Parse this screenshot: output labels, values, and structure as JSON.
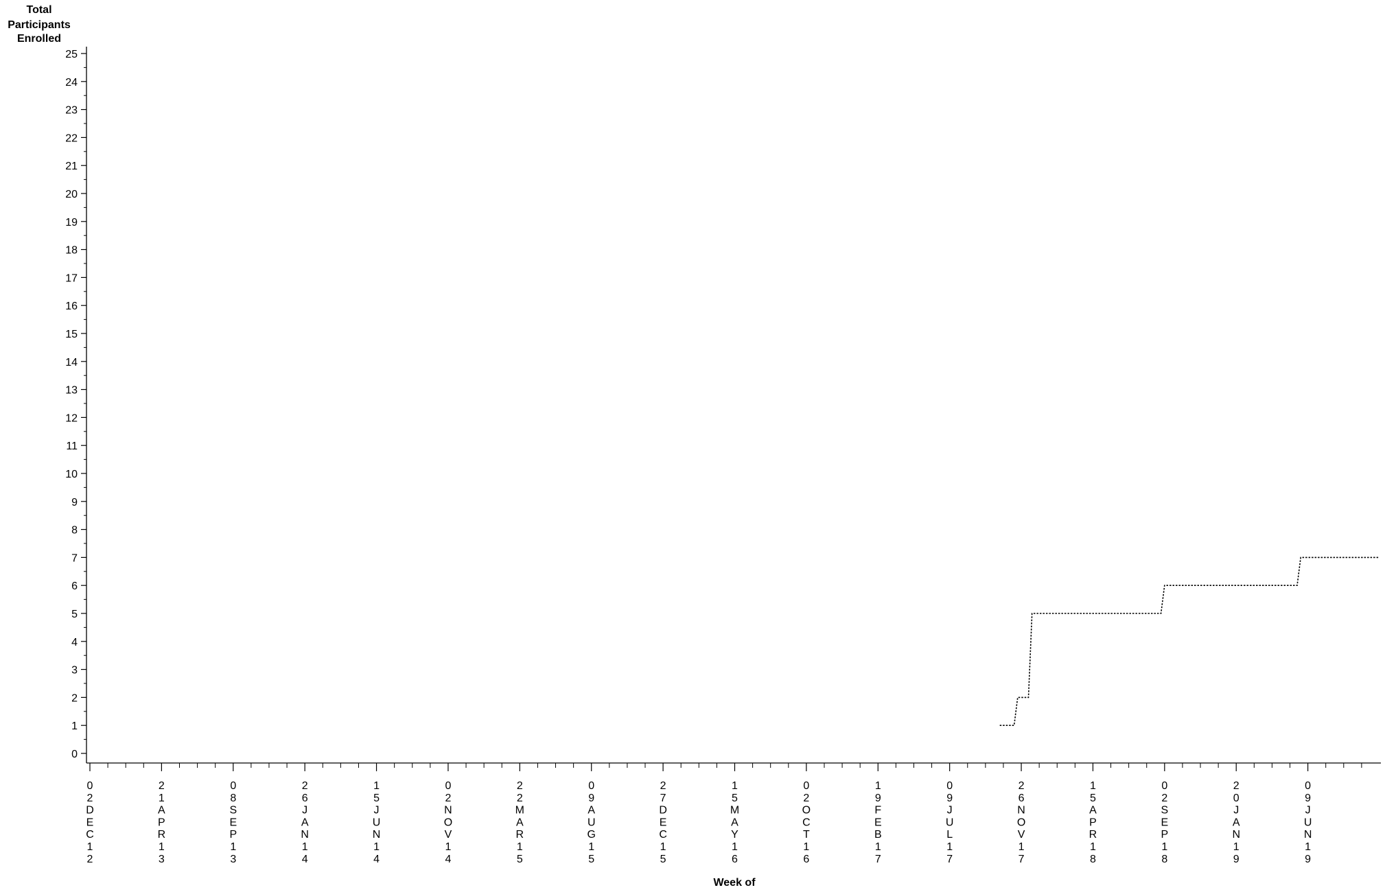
{
  "chart_data": {
    "type": "line",
    "ylabel_lines": [
      "Total",
      "Participants",
      "Enrolled"
    ],
    "xlabel": "Week of",
    "ylim": [
      0,
      25
    ],
    "yticks": [
      0,
      1,
      2,
      3,
      4,
      5,
      6,
      7,
      8,
      9,
      10,
      11,
      12,
      13,
      14,
      15,
      16,
      17,
      18,
      19,
      20,
      21,
      22,
      23,
      24,
      25
    ],
    "xlim": [
      "2012-12-02",
      "2019-10-27"
    ],
    "xticks": [
      {
        "date": "2012-12-02",
        "label": "02DEC12"
      },
      {
        "date": "2013-04-21",
        "label": "21APR13"
      },
      {
        "date": "2013-09-08",
        "label": "08SEP13"
      },
      {
        "date": "2014-01-26",
        "label": "26JAN14"
      },
      {
        "date": "2014-06-15",
        "label": "15JUN14"
      },
      {
        "date": "2014-11-02",
        "label": "02NOV14"
      },
      {
        "date": "2015-03-22",
        "label": "22MAR15"
      },
      {
        "date": "2015-08-09",
        "label": "09AUG15"
      },
      {
        "date": "2015-12-27",
        "label": "27DEC15"
      },
      {
        "date": "2016-05-15",
        "label": "15MAY16"
      },
      {
        "date": "2016-10-02",
        "label": "02OCT16"
      },
      {
        "date": "2017-02-19",
        "label": "19FEB17"
      },
      {
        "date": "2017-07-09",
        "label": "09JUL17"
      },
      {
        "date": "2017-11-26",
        "label": "26NOV17"
      },
      {
        "date": "2018-04-15",
        "label": "15APR18"
      },
      {
        "date": "2018-09-02",
        "label": "02SEP18"
      },
      {
        "date": "2019-01-20",
        "label": "20JAN19"
      },
      {
        "date": "2019-06-09",
        "label": "09JUN19"
      }
    ],
    "series": [
      {
        "line_style": "dotted",
        "color": "#000000",
        "x": [
          "2017-10-15",
          "2017-11-12",
          "2017-11-19",
          "2017-12-10",
          "2017-12-17",
          "2018-08-26",
          "2018-09-02",
          "2019-05-19",
          "2019-05-26",
          "2019-10-27"
        ],
        "y": [
          1,
          1,
          2,
          2,
          5,
          5,
          6,
          6,
          7,
          7
        ]
      }
    ]
  }
}
